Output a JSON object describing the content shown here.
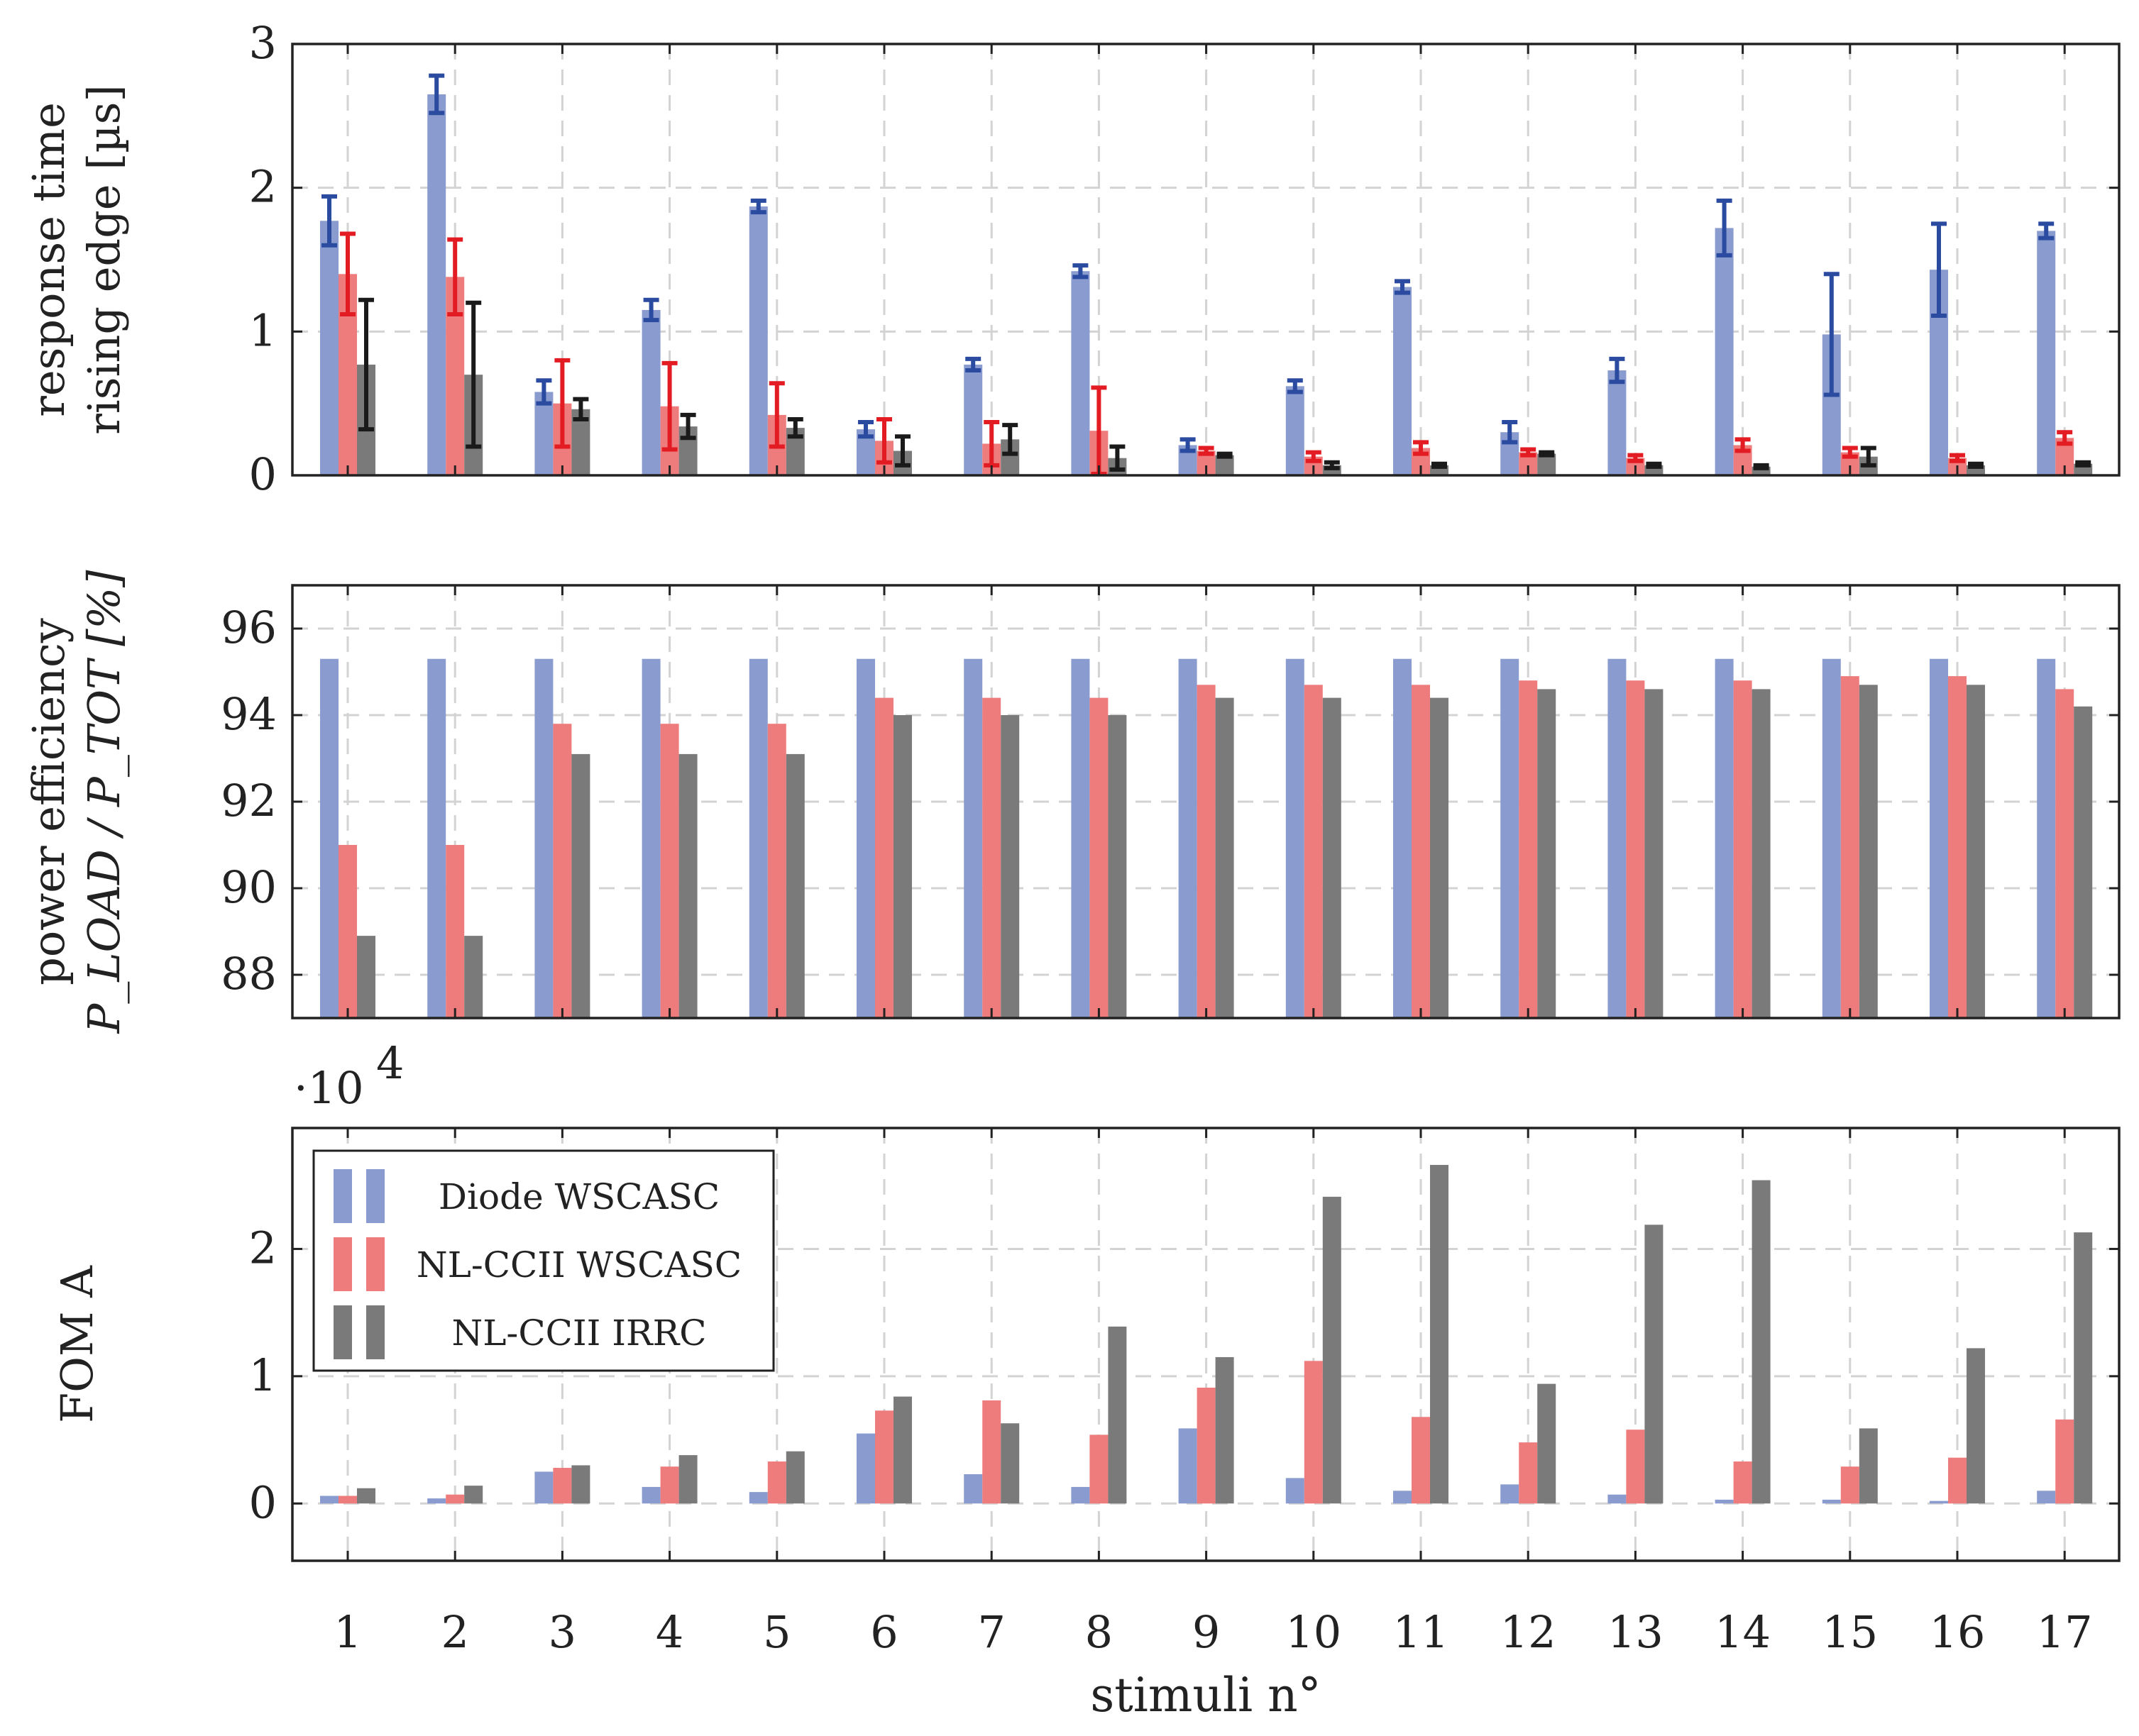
{
  "colors": {
    "diode": "#8a9ccf",
    "nlccii_wscasc": "#ef7c7c",
    "nlccii_irrc": "#7a7a7a",
    "err_diode": "#2b4ba0",
    "err_nlccii_wscasc": "#e31b23",
    "err_nlccii_irrc": "#1a1a1a",
    "grid": "#d3d3d3",
    "axis": "#222222"
  },
  "chart_data": [
    {
      "type": "bar",
      "id": "response-time",
      "ylabel_line1": "response time",
      "ylabel_line2": "rising edge [µs]",
      "ylim": [
        0,
        3
      ],
      "yticks": [
        0,
        1,
        2,
        3
      ],
      "ytick_labels": [
        "0",
        "1",
        "2",
        "3"
      ],
      "categories": [
        "1",
        "2",
        "3",
        "4",
        "5",
        "6",
        "7",
        "8",
        "9",
        "10",
        "11",
        "12",
        "13",
        "14",
        "15",
        "16",
        "17"
      ],
      "series": [
        {
          "name": "Diode WSCASC",
          "values": [
            1.77,
            2.65,
            0.58,
            1.15,
            1.87,
            0.32,
            0.77,
            1.42,
            0.21,
            0.62,
            1.31,
            0.3,
            0.73,
            1.72,
            0.98,
            1.43,
            1.7
          ],
          "errors": [
            0.17,
            0.13,
            0.08,
            0.07,
            0.04,
            0.05,
            0.04,
            0.04,
            0.04,
            0.04,
            0.04,
            0.07,
            0.08,
            0.19,
            0.42,
            0.32,
            0.05
          ]
        },
        {
          "name": "NL-CCII WSCASC",
          "values": [
            1.4,
            1.38,
            0.5,
            0.48,
            0.42,
            0.24,
            0.22,
            0.31,
            0.17,
            0.13,
            0.19,
            0.16,
            0.12,
            0.21,
            0.16,
            0.12,
            0.26
          ],
          "errors": [
            0.28,
            0.26,
            0.3,
            0.3,
            0.22,
            0.15,
            0.15,
            0.3,
            0.02,
            0.03,
            0.04,
            0.02,
            0.02,
            0.04,
            0.03,
            0.02,
            0.04
          ]
        },
        {
          "name": "NL-CCII IRRC",
          "values": [
            0.77,
            0.7,
            0.46,
            0.34,
            0.33,
            0.17,
            0.25,
            0.12,
            0.14,
            0.07,
            0.07,
            0.15,
            0.07,
            0.06,
            0.13,
            0.07,
            0.08
          ],
          "errors": [
            0.45,
            0.5,
            0.07,
            0.08,
            0.06,
            0.1,
            0.1,
            0.08,
            0.01,
            0.02,
            0.01,
            0.01,
            0.01,
            0.01,
            0.06,
            0.01,
            0.01
          ]
        }
      ]
    },
    {
      "type": "bar",
      "id": "power-efficiency",
      "ylabel_line1": "power efficiency",
      "ylabel_line2": "P_LOAD / P_TOT [%]",
      "ylim": [
        87,
        97
      ],
      "yticks": [
        88,
        90,
        92,
        94,
        96
      ],
      "ytick_labels": [
        "88",
        "90",
        "92",
        "94",
        "96"
      ],
      "categories": [
        "1",
        "2",
        "3",
        "4",
        "5",
        "6",
        "7",
        "8",
        "9",
        "10",
        "11",
        "12",
        "13",
        "14",
        "15",
        "16",
        "17"
      ],
      "series": [
        {
          "name": "Diode WSCASC",
          "values": [
            95.3,
            95.3,
            95.3,
            95.3,
            95.3,
            95.3,
            95.3,
            95.3,
            95.3,
            95.3,
            95.3,
            95.3,
            95.3,
            95.3,
            95.3,
            95.3,
            95.3
          ]
        },
        {
          "name": "NL-CCII WSCASC",
          "values": [
            91.0,
            91.0,
            93.8,
            93.8,
            93.8,
            94.4,
            94.4,
            94.4,
            94.7,
            94.7,
            94.7,
            94.8,
            94.8,
            94.8,
            94.9,
            94.9,
            94.6
          ]
        },
        {
          "name": "NL-CCII IRRC",
          "values": [
            88.9,
            88.9,
            93.1,
            93.1,
            93.1,
            94.0,
            94.0,
            94.0,
            94.4,
            94.4,
            94.4,
            94.6,
            94.6,
            94.6,
            94.7,
            94.7,
            94.2
          ]
        }
      ]
    },
    {
      "type": "bar",
      "id": "fom-a",
      "ylabel_line1": "FOM A",
      "scale_label": "·10",
      "scale_exponent": "4",
      "ylim": [
        -0.45,
        2.95
      ],
      "yticks": [
        0,
        1,
        2
      ],
      "ytick_labels": [
        "0",
        "1",
        "2"
      ],
      "categories": [
        "1",
        "2",
        "3",
        "4",
        "5",
        "6",
        "7",
        "8",
        "9",
        "10",
        "11",
        "12",
        "13",
        "14",
        "15",
        "16",
        "17"
      ],
      "xlabel": "stimuli n°",
      "series": [
        {
          "name": "Diode WSCASC",
          "values": [
            0.06,
            0.04,
            0.25,
            0.13,
            0.09,
            0.55,
            0.23,
            0.13,
            0.59,
            0.2,
            0.1,
            0.15,
            0.07,
            0.03,
            0.03,
            0.02,
            0.1
          ]
        },
        {
          "name": "NL-CCII WSCASC",
          "values": [
            0.06,
            0.07,
            0.28,
            0.29,
            0.33,
            0.73,
            0.81,
            0.54,
            0.91,
            1.12,
            0.68,
            0.48,
            0.58,
            0.33,
            0.29,
            0.36,
            0.66
          ]
        },
        {
          "name": "NL-CCII IRRC",
          "values": [
            0.12,
            0.14,
            0.3,
            0.38,
            0.41,
            0.84,
            0.63,
            1.39,
            1.15,
            2.41,
            2.66,
            0.94,
            2.19,
            2.54,
            0.59,
            1.22,
            2.13
          ]
        }
      ],
      "legend": {
        "position": "top-left",
        "entries": [
          "Diode WSCASC",
          "NL-CCII WSCASC",
          "NL-CCII IRRC"
        ]
      }
    }
  ]
}
